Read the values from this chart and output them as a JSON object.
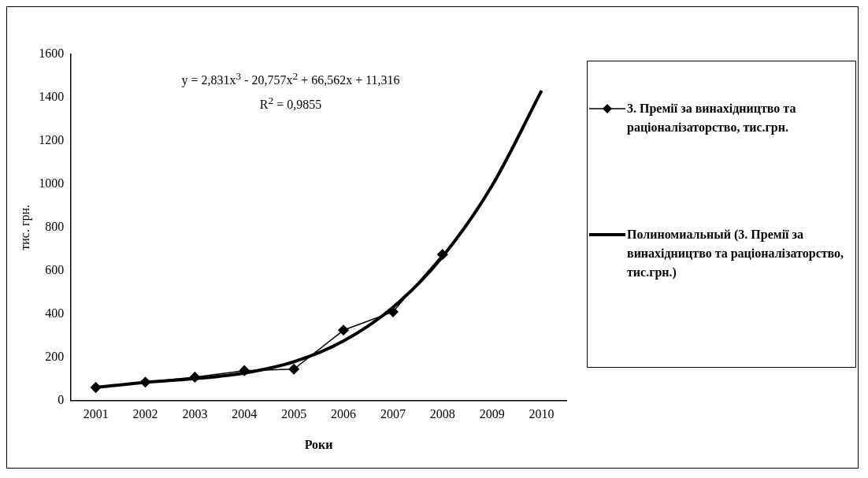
{
  "chart_data": {
    "type": "line",
    "xlabel": "Роки",
    "ylabel": "тис. грн.",
    "categories": [
      "2001",
      "2002",
      "2003",
      "2004",
      "2005",
      "2006",
      "2007",
      "2008",
      "2009",
      "2010"
    ],
    "series": [
      {
        "name": "3. Премії за винахідництво та раціоналізаторство, тис.грн.",
        "color": "#000000",
        "marker": "diamond",
        "values": [
          60,
          85,
          108,
          138,
          145,
          325,
          410,
          675,
          null,
          null
        ]
      },
      {
        "name": "Полиномиальный (3. Премії за винахідництво та раціоналізаторство, тис.грн.)",
        "color": "#000000",
        "marker": "none",
        "values": [
          60,
          84,
          101,
          127,
          179,
          275,
          431,
          665,
          993,
          1432
        ]
      }
    ],
    "ylim": [
      0,
      1600
    ],
    "yticks": [
      0,
      200,
      400,
      600,
      800,
      1000,
      1200,
      1400,
      1600
    ],
    "grid": false,
    "legend": "right",
    "annotations": [
      "y = 2,831x$^{3}$ - 20,757x$^{2}$ + 66,562x + 11,316",
      "R$^{2}$ = 0,9855"
    ]
  }
}
